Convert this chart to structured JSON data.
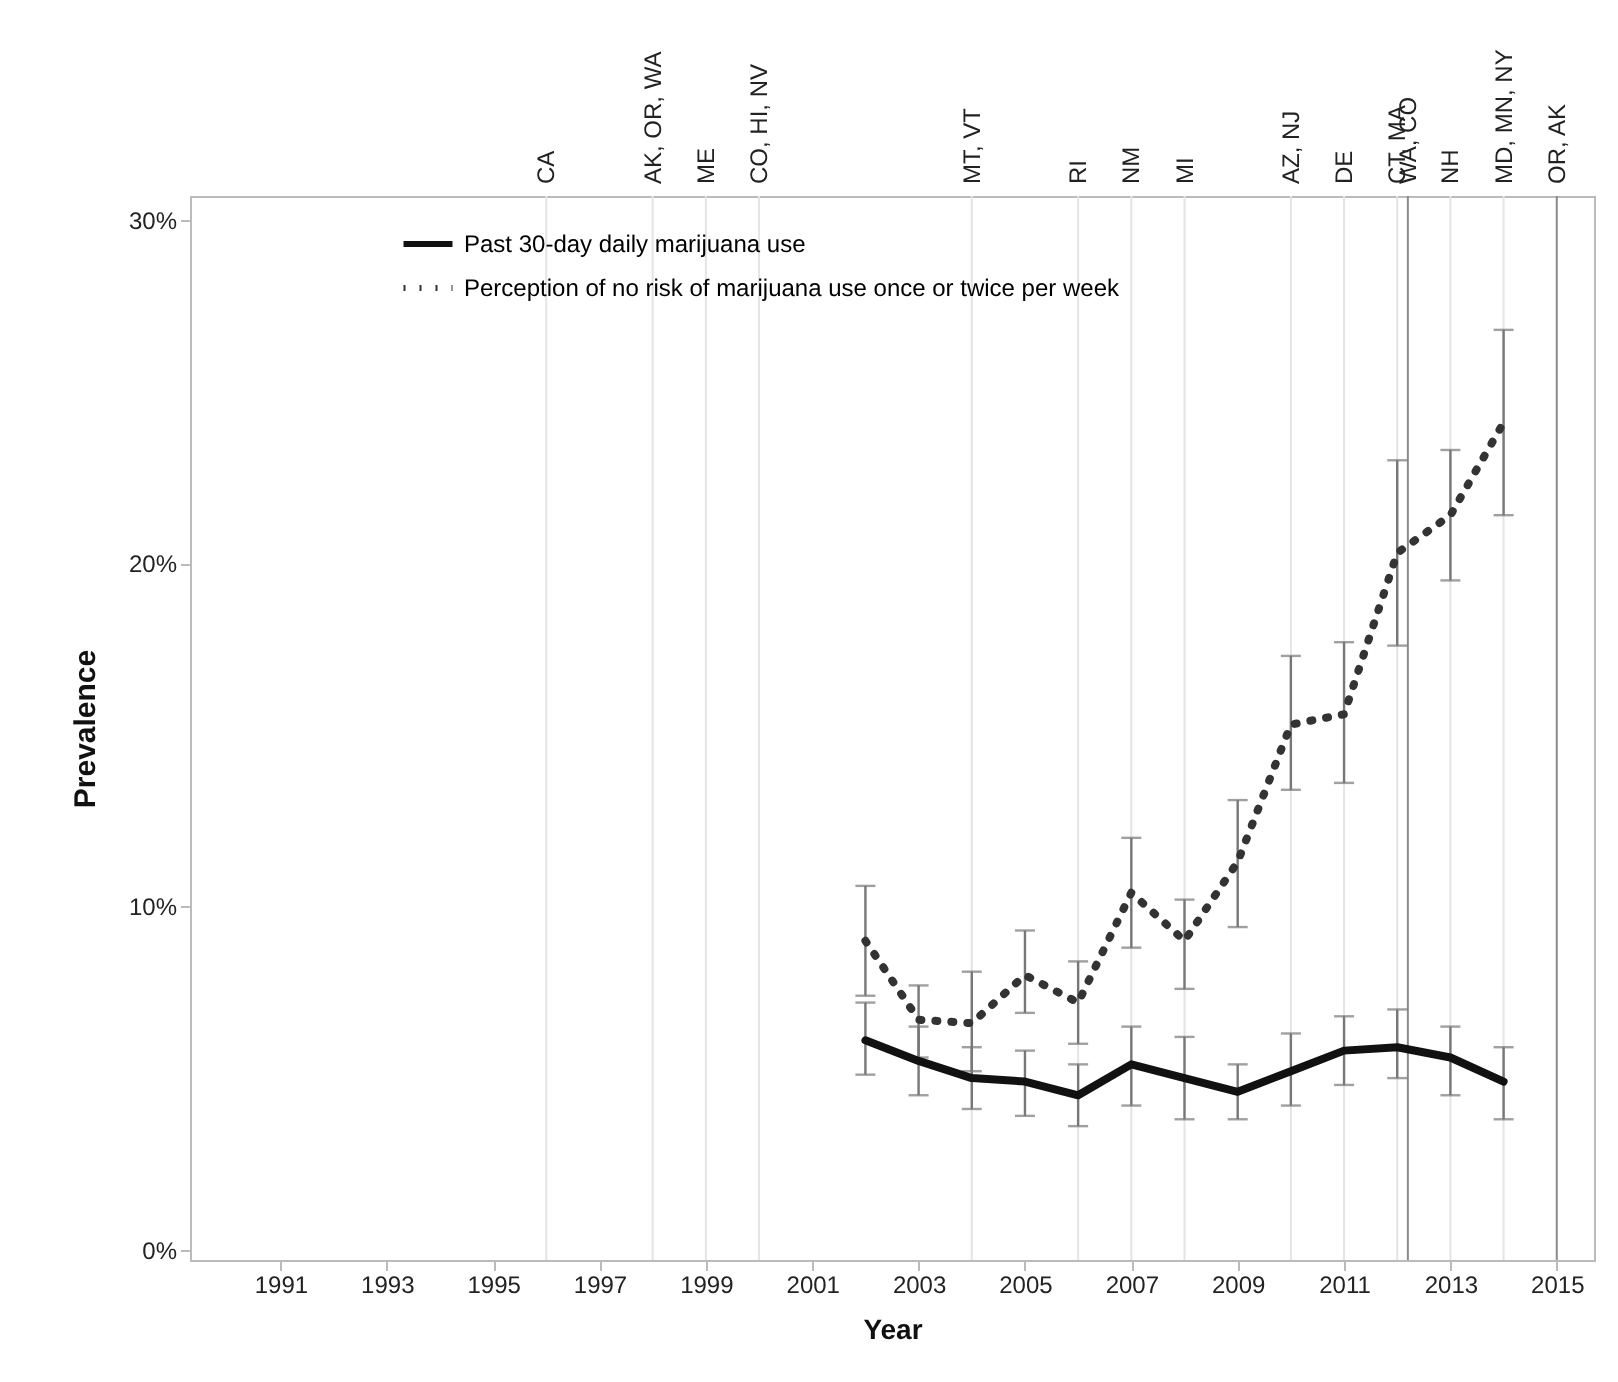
{
  "chart_data": {
    "type": "line",
    "xlabel": "Year",
    "ylabel": "Prevalence",
    "x": [
      2002,
      2003,
      2004,
      2005,
      2006,
      2007,
      2008,
      2009,
      2010,
      2011,
      2012,
      2013,
      2014
    ],
    "series": [
      {
        "name": "Past 30-day daily marijuana use",
        "color": "#111111",
        "line_style": "solid",
        "values": [
          6.1,
          5.5,
          5.0,
          4.9,
          4.5,
          5.4,
          5.0,
          4.6,
          5.2,
          5.8,
          5.9,
          5.6,
          4.9
        ],
        "errors": [
          [
            5.1,
            7.2
          ],
          [
            4.5,
            6.5
          ],
          [
            4.1,
            5.9
          ],
          [
            3.9,
            5.8
          ],
          [
            3.6,
            5.4
          ],
          [
            4.2,
            6.5
          ],
          [
            3.8,
            6.2
          ],
          [
            3.8,
            5.4
          ],
          [
            4.2,
            6.3
          ],
          [
            4.8,
            6.8
          ],
          [
            5.0,
            7.0
          ],
          [
            4.5,
            6.5
          ],
          [
            3.8,
            5.9
          ]
        ]
      },
      {
        "name": "Perception of no risk of marijuana use once or twice per week",
        "color": "#333333",
        "line_style": "dotted",
        "values": [
          9.0,
          6.7,
          6.6,
          8.0,
          7.2,
          10.4,
          9.0,
          11.3,
          15.3,
          15.6,
          20.3,
          21.4,
          24.1
        ],
        "errors": [
          [
            7.4,
            10.6
          ],
          [
            5.6,
            7.7
          ],
          [
            5.2,
            8.1
          ],
          [
            6.9,
            9.3
          ],
          [
            6.0,
            8.4
          ],
          [
            8.8,
            12.0
          ],
          [
            7.6,
            10.2
          ],
          [
            9.4,
            13.1
          ],
          [
            13.4,
            17.3
          ],
          [
            13.6,
            17.7
          ],
          [
            17.6,
            23.0
          ],
          [
            19.5,
            23.3
          ],
          [
            21.4,
            26.8
          ]
        ]
      }
    ],
    "xlim": [
      1989.3,
      2015.7
    ],
    "xticks": [
      1991,
      1993,
      1995,
      1997,
      1999,
      2001,
      2003,
      2005,
      2007,
      2009,
      2011,
      2013,
      2015
    ],
    "ylim": [
      -0.3,
      30.7
    ],
    "yticks": [
      {
        "value": 0,
        "label": "0%"
      },
      {
        "value": 10,
        "label": "10%"
      },
      {
        "value": 20,
        "label": "20%"
      },
      {
        "value": 30,
        "label": "30%"
      }
    ],
    "ref_lines": [
      {
        "axis": "x",
        "value": 1996,
        "label": "CA",
        "color": "#e4e4e4"
      },
      {
        "axis": "x",
        "value": 1998,
        "label": "AK, OR, WA",
        "color": "#e4e4e4"
      },
      {
        "axis": "x",
        "value": 1999,
        "label": "ME",
        "color": "#e4e4e4"
      },
      {
        "axis": "x",
        "value": 2000,
        "label": "CO, HI, NV",
        "color": "#e4e4e4"
      },
      {
        "axis": "x",
        "value": 2004,
        "label": "MT, VT",
        "color": "#e4e4e4"
      },
      {
        "axis": "x",
        "value": 2006,
        "label": "RI",
        "color": "#e4e4e4"
      },
      {
        "axis": "x",
        "value": 2007,
        "label": "NM",
        "color": "#e4e4e4"
      },
      {
        "axis": "x",
        "value": 2008,
        "label": "MI",
        "color": "#e4e4e4"
      },
      {
        "axis": "x",
        "value": 2010,
        "label": "AZ, NJ",
        "color": "#e4e4e4"
      },
      {
        "axis": "x",
        "value": 2011,
        "label": "DE",
        "color": "#e4e4e4"
      },
      {
        "axis": "x",
        "value": 2012,
        "label": "CT, MA",
        "color": "#e4e4e4"
      },
      {
        "axis": "x",
        "value": 2012.2,
        "label": "WA, CO",
        "color": "#8a8a8a"
      },
      {
        "axis": "x",
        "value": 2013,
        "label": "NH",
        "color": "#e4e4e4"
      },
      {
        "axis": "x",
        "value": 2014,
        "label": "MD, MN, NY",
        "color": "#e4e4e4"
      },
      {
        "axis": "x",
        "value": 2015,
        "label": "OR, AK",
        "color": "#8a8a8a"
      }
    ],
    "legend": "top",
    "grid": false
  }
}
